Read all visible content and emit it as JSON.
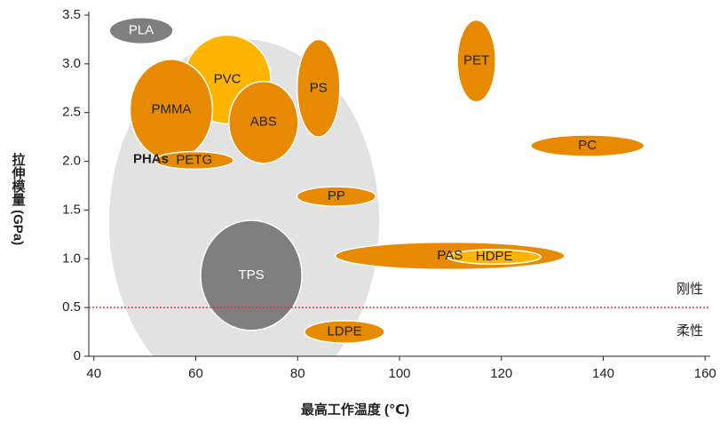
{
  "chart_data": {
    "type": "ellipse",
    "x_label": "最高工作温度 (℃)",
    "y_label": "拉伸模量 (GPa)",
    "xlim": [
      39,
      161
    ],
    "ylim": [
      0,
      3.5
    ],
    "xticks": [
      40,
      60,
      80,
      100,
      120,
      140,
      160
    ],
    "yticks": [
      0,
      {
        "value": 0.5,
        "label": "0.5"
      },
      {
        "value": 1,
        "label": "1.0"
      },
      1.5,
      {
        "value": 2,
        "label": "2.0"
      },
      2.5,
      {
        "value": 3,
        "label": "3.0"
      },
      3.5
    ],
    "threshold": {
      "value": 0.5,
      "color": "#e02020",
      "labels": [
        "刚性",
        "柔性"
      ]
    },
    "series": [
      {
        "name": "PHAs",
        "x": 69.5,
        "y": 1.38,
        "width": 53,
        "height": 3.74,
        "color": "#e2e2e2"
      },
      {
        "name": "TPS",
        "x": 70.9,
        "y": 0.83,
        "width": 19.9,
        "height": 1.13,
        "color": "#7f7f7f"
      },
      {
        "name": "PLA",
        "x": 49.3,
        "y": 3.34,
        "width": 12.5,
        "height": 0.27,
        "color": "#7f7f7f"
      },
      {
        "name": "PVC",
        "x": 66.2,
        "y": 2.84,
        "width": 17,
        "height": 0.91,
        "color": "#ffb400"
      },
      {
        "name": "PMMA",
        "x": 55.2,
        "y": 2.53,
        "width": 16.2,
        "height": 1.03,
        "color": "#e88a00"
      },
      {
        "name": "PETG",
        "x": 59.7,
        "y": 2.01,
        "width": 15.5,
        "height": 0.18,
        "color": "#e88a00"
      },
      {
        "name": "ABS",
        "x": 73.3,
        "y": 2.4,
        "width": 13.6,
        "height": 0.84,
        "color": "#e88a00"
      },
      {
        "name": "PS",
        "x": 84.1,
        "y": 2.75,
        "width": 8.4,
        "height": 1.0,
        "color": "#e88a00"
      },
      {
        "name": "PET",
        "x": 115.1,
        "y": 3.03,
        "width": 7.5,
        "height": 0.84,
        "color": "#e88a00"
      },
      {
        "name": "PC",
        "x": 136.9,
        "y": 2.16,
        "width": 22.3,
        "height": 0.22,
        "color": "#e88a00"
      },
      {
        "name": "PP",
        "x": 87.6,
        "y": 1.64,
        "width": 15.5,
        "height": 0.2,
        "color": "#e88a00"
      },
      {
        "name": "PAS",
        "x": 109.9,
        "y": 1.03,
        "width": 45,
        "height": 0.28,
        "color": "#e88a00"
      },
      {
        "name": "HDPE",
        "x": 118.6,
        "y": 1.02,
        "width": 18.3,
        "height": 0.15,
        "color": "#ffb400"
      },
      {
        "name": "LDPE",
        "x": 89.2,
        "y": 0.25,
        "width": 15.7,
        "height": 0.23,
        "color": "#e88a00"
      }
    ]
  }
}
